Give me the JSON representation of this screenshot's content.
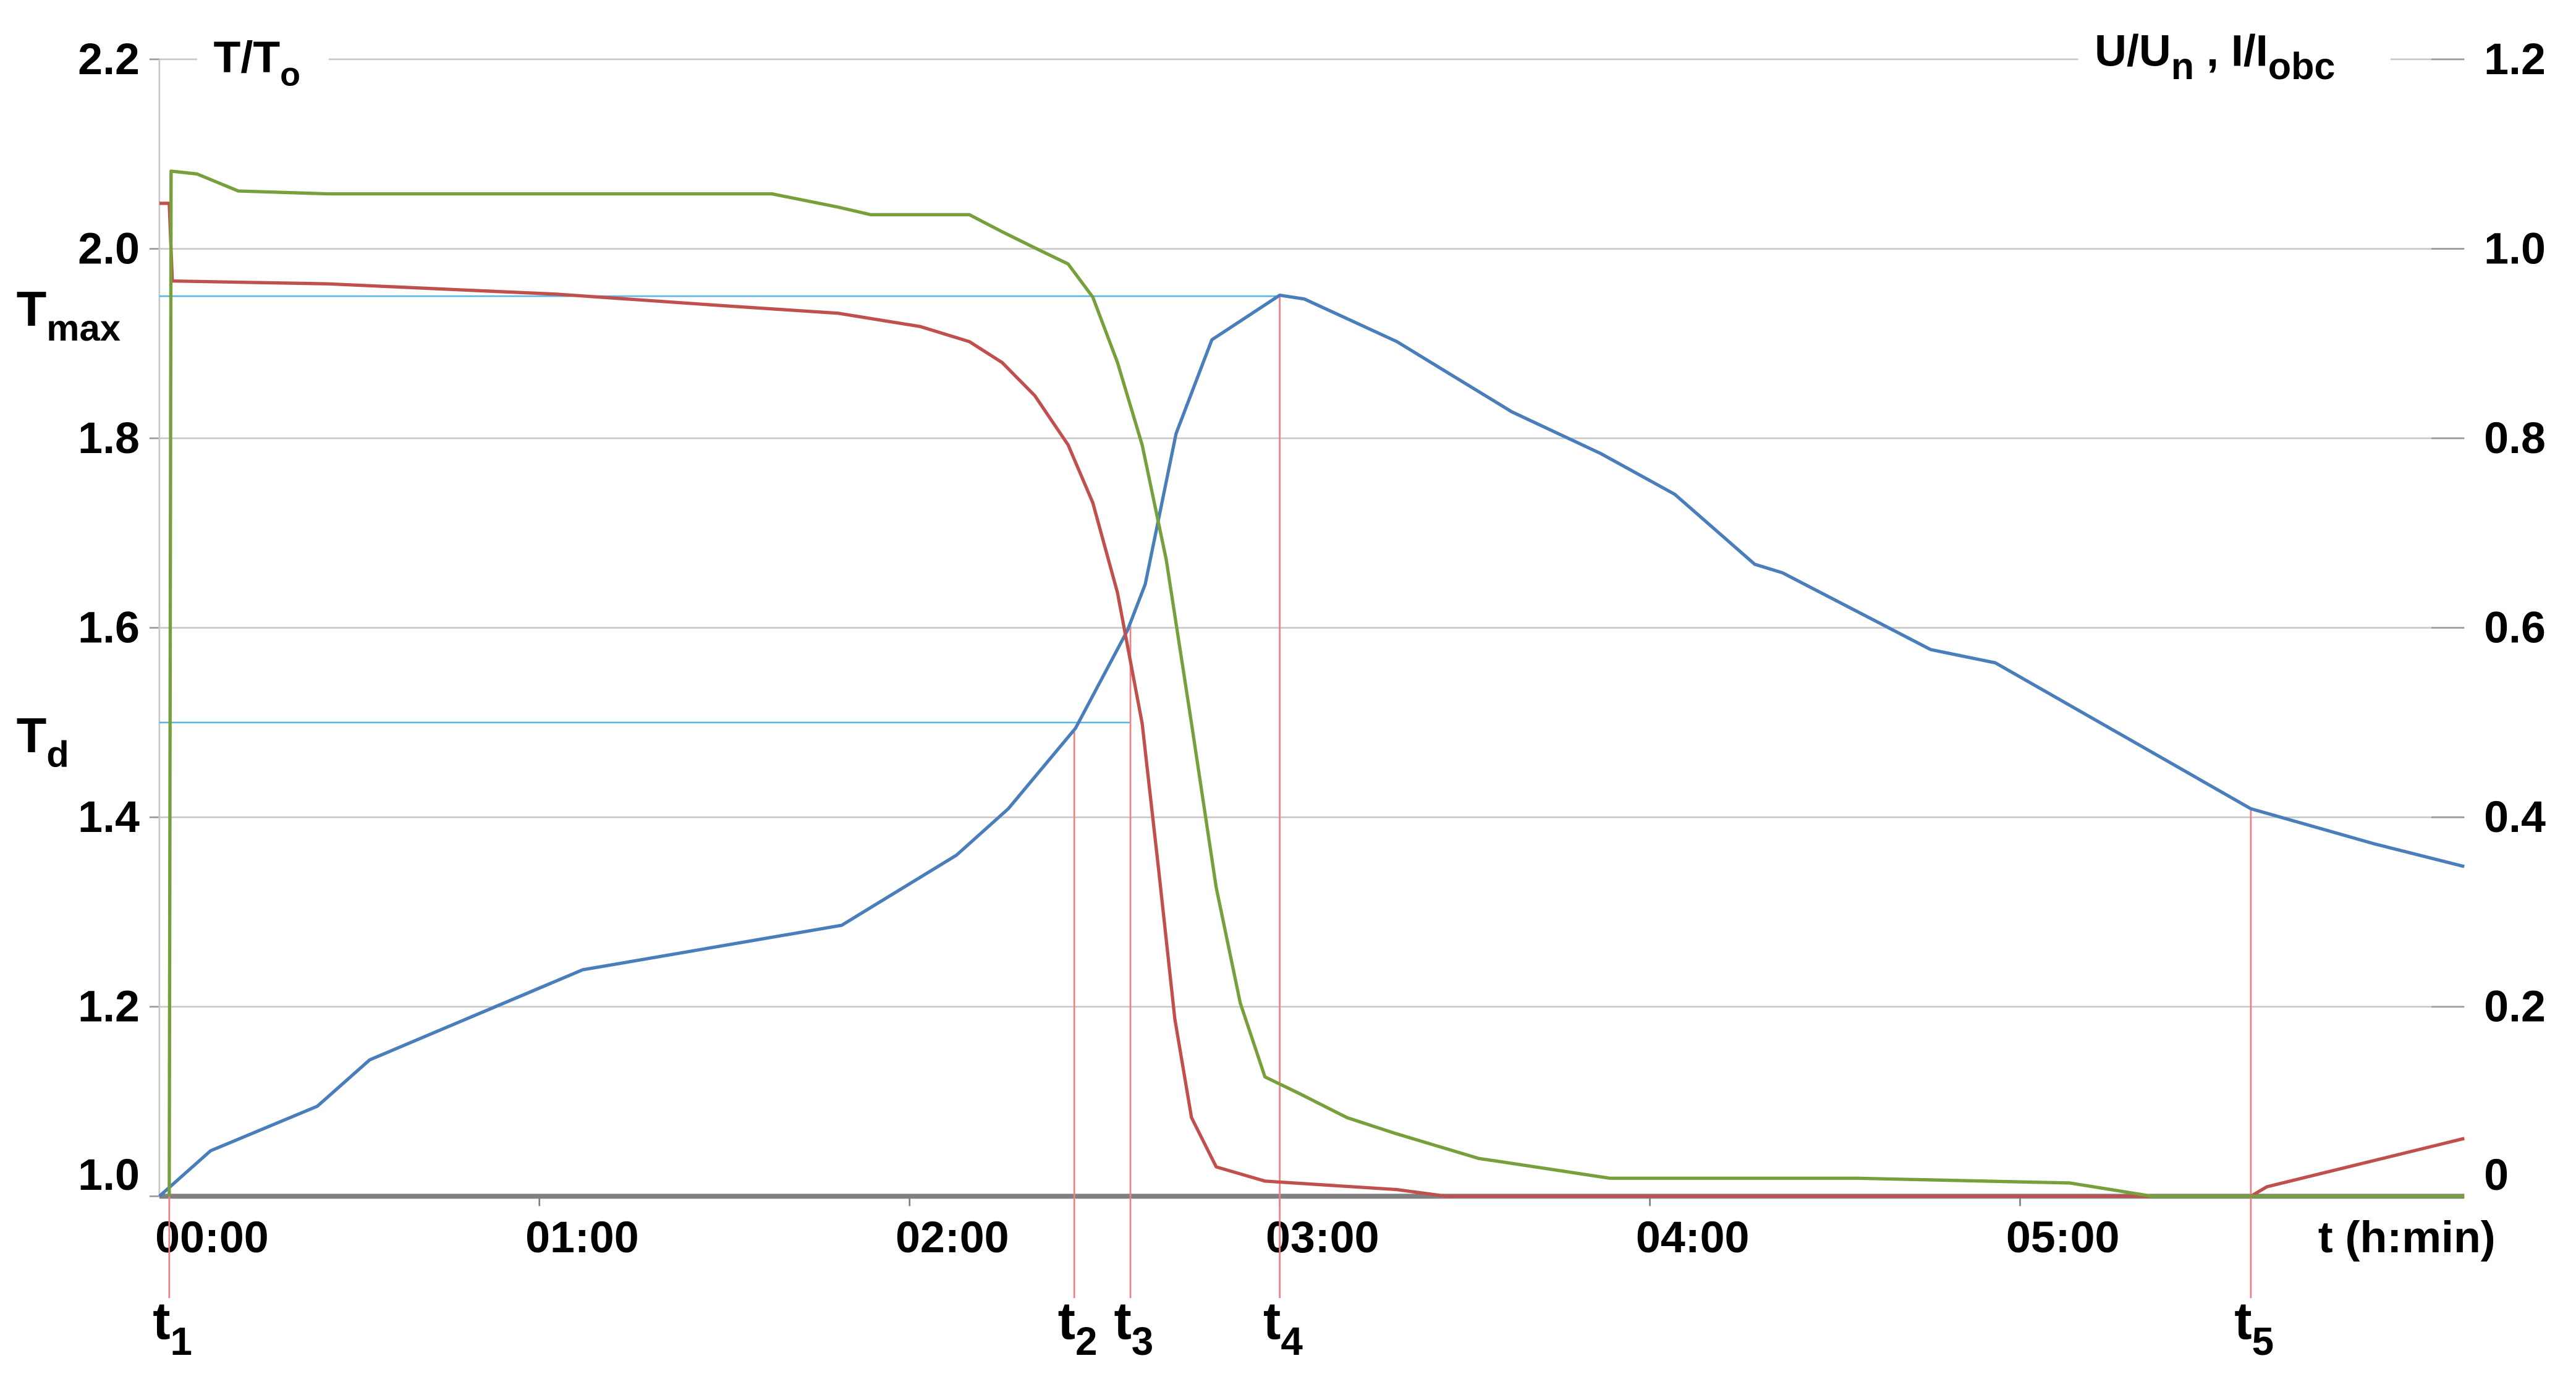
{
  "chart_data": {
    "type": "line",
    "y_label": {
      "label": "T/T",
      "sub": "o"
    },
    "y2_label": [
      {
        "label": "U/U",
        "sub": "n"
      },
      {
        "label": " , I/I",
        "sub": "obc"
      }
    ],
    "x_label": "t (h:min)",
    "xlim": [
      -1.6,
      372
    ],
    "xticks": [
      {
        "value": 0,
        "label": "00:00"
      },
      {
        "value": 60,
        "label": "01:00"
      },
      {
        "value": 120,
        "label": "02:00"
      },
      {
        "value": 180,
        "label": "03:00"
      },
      {
        "value": 240,
        "label": "04:00"
      },
      {
        "value": 300,
        "label": "05:00"
      }
    ],
    "ylim": [
      1.0,
      2.2
    ],
    "yticks": [
      {
        "value": 1.0,
        "label": "1.0"
      },
      1.2,
      1.4,
      1.6,
      1.8,
      {
        "value": 2.0,
        "label": "2.0"
      },
      2.2
    ],
    "y2lim": [
      0,
      1.2
    ],
    "y2ticks": [
      0,
      0.2,
      0.4,
      0.6,
      0.8,
      {
        "value": 1.0,
        "label": "1.0"
      },
      1.2
    ],
    "grid": true,
    "series": [
      {
        "color": "#4a7ebb",
        "axis": "y",
        "x": [
          -1.6,
          6.7,
          24,
          32.5,
          67,
          109,
          127.6,
          136,
          146.9,
          155.3,
          158.2,
          163.2,
          169,
          180,
          184,
          199,
          217.6,
          232,
          244,
          257,
          261.5,
          285.5,
          296,
          337.4,
          357.4,
          372
        ],
        "values": [
          1.0,
          1.048,
          1.095,
          1.144,
          1.239,
          1.286,
          1.36,
          1.409,
          1.494,
          1.597,
          1.646,
          1.805,
          1.904,
          1.951,
          1.947,
          1.902,
          1.828,
          1.784,
          1.741,
          1.667,
          1.658,
          1.577,
          1.563,
          1.409,
          1.372,
          1.348
        ]
      },
      {
        "color": "#c0504d",
        "axis": "y2",
        "x": [
          -1.6,
          0,
          0.5,
          25.8,
          63.1,
          89.7,
          108.4,
          121.7,
          129.7,
          135,
          140.3,
          145.7,
          149.7,
          153.7,
          157.7,
          160.4,
          163,
          165.7,
          169.7,
          177.6,
          199,
          207,
          337.4,
          340,
          372
        ],
        "values": [
          1.048,
          1.048,
          0.966,
          0.963,
          0.952,
          0.94,
          0.932,
          0.918,
          0.902,
          0.88,
          0.845,
          0.793,
          0.732,
          0.637,
          0.499,
          0.343,
          0.187,
          0.083,
          0.031,
          0.016,
          0.007,
          0,
          0,
          0.01,
          0.061
        ]
      },
      {
        "color": "#77a03c",
        "axis": "y2",
        "x": [
          0,
          0.3,
          4.5,
          11.2,
          25.8,
          97.7,
          108.4,
          113.7,
          129.7,
          135,
          140.3,
          145.7,
          149.7,
          153.7,
          157.7,
          161.6,
          165.7,
          169.7,
          173.6,
          177.6,
          183,
          190.9,
          198.9,
          212.2,
          233.5,
          273.5,
          308.1,
          321.4,
          372
        ],
        "values": [
          0,
          1.082,
          1.079,
          1.061,
          1.058,
          1.058,
          1.044,
          1.036,
          1.036,
          1.018,
          1.001,
          0.984,
          0.949,
          0.88,
          0.793,
          0.672,
          0.499,
          0.326,
          0.204,
          0.126,
          0.109,
          0.083,
          0.066,
          0.04,
          0.019,
          0.019,
          0.014,
          0,
          0
        ]
      }
    ],
    "levels": [
      {
        "label": "T",
        "sub": "max",
        "y": 1.95,
        "until": 180
      },
      {
        "label": "T",
        "sub": "d",
        "y": 1.5,
        "until": 155.8
      }
    ],
    "markers": [
      {
        "label": "t",
        "sub": "1",
        "x": 0
      },
      {
        "label": "t",
        "sub": "2",
        "x": 146.7
      },
      {
        "label": "t",
        "sub": "3",
        "x": 155.8
      },
      {
        "label": "t",
        "sub": "4",
        "x": 180
      },
      {
        "label": "t",
        "sub": "5",
        "x": 337.4
      }
    ]
  }
}
